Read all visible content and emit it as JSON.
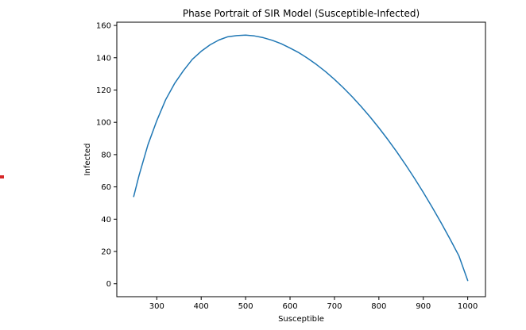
{
  "chart_data": {
    "type": "line",
    "title": "Phase Portrait of SIR Model (Susceptible-Infected)",
    "xlabel": "Susceptible",
    "ylabel": "Infected",
    "xlim": [
      210,
      1040
    ],
    "ylim": [
      -8,
      162
    ],
    "xticks": [
      300,
      400,
      500,
      600,
      700,
      800,
      900,
      1000
    ],
    "yticks": [
      0,
      20,
      40,
      60,
      80,
      100,
      120,
      140,
      160
    ],
    "grid": false,
    "series": [
      {
        "color": "#1f77b4",
        "x": [
          248,
          260,
          280,
          300,
          320,
          340,
          360,
          380,
          400,
          420,
          440,
          460,
          480,
          500,
          520,
          540,
          560,
          580,
          600,
          620,
          640,
          660,
          680,
          700,
          720,
          740,
          760,
          780,
          800,
          820,
          840,
          860,
          880,
          900,
          920,
          940,
          960,
          980,
          1000
        ],
        "y": [
          54,
          67,
          86,
          101,
          114,
          124,
          132,
          139,
          144,
          148,
          151,
          153,
          153.7,
          154,
          153.5,
          152.4,
          150.8,
          148.7,
          146,
          143.1,
          139.6,
          135.7,
          131.4,
          126.6,
          121.4,
          115.8,
          109.8,
          103.4,
          96.6,
          89.4,
          81.8,
          73.8,
          65.4,
          56.6,
          47.4,
          37.8,
          27.8,
          17.4,
          2
        ]
      }
    ]
  },
  "stray_marker": {
    "color": "#d62728"
  }
}
